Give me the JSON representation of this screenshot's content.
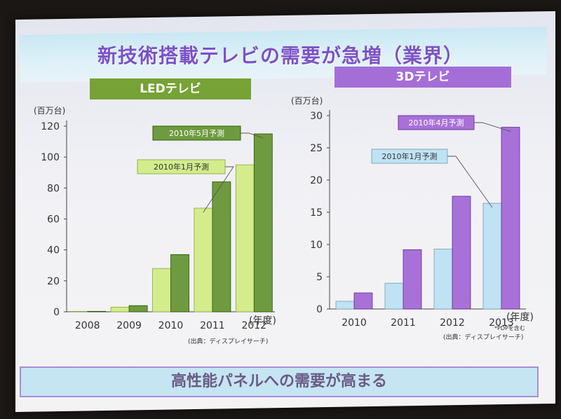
{
  "title": "新技術搭載テレビの需要が急増（業界）",
  "footer": "高性能パネルへの需要が高まる",
  "chart_data": [
    {
      "type": "bar",
      "title": "LEDテレビ",
      "yunit": "(百万台)",
      "xunit": "(年度)",
      "source": "(出典：ディスプレイサーチ)",
      "categories": [
        "2008",
        "2009",
        "2010",
        "2011",
        "2012"
      ],
      "ylim": [
        0,
        120
      ],
      "yticks": [
        0,
        20,
        40,
        60,
        80,
        100,
        120
      ],
      "series": [
        {
          "name": "2010年1月予測",
          "color": "#d3ec8c",
          "values": [
            0.3,
            3,
            28,
            67,
            95
          ]
        },
        {
          "name": "2010年5月予測",
          "color": "#6e9b3f",
          "values": [
            0.3,
            4,
            37,
            84,
            115
          ]
        }
      ],
      "grid": false
    },
    {
      "type": "bar",
      "title": "3Dテレビ",
      "yunit": "(百万台)",
      "xunit": "(年度)",
      "source": "(出典：ディスプレイサーチ)",
      "note": "*PDPを含む",
      "categories": [
        "2010",
        "2011",
        "2012",
        "2013"
      ],
      "ylim": [
        0,
        30
      ],
      "yticks": [
        0,
        5,
        10,
        15,
        20,
        25,
        30
      ],
      "series": [
        {
          "name": "2010年1月予測",
          "color": "#bfe3f4",
          "values": [
            1.2,
            4,
            9.3,
            16.4
          ]
        },
        {
          "name": "2010年4月予測",
          "color": "#a871d8",
          "values": [
            2.5,
            9.2,
            17.5,
            28.2
          ]
        }
      ],
      "grid": false
    }
  ]
}
